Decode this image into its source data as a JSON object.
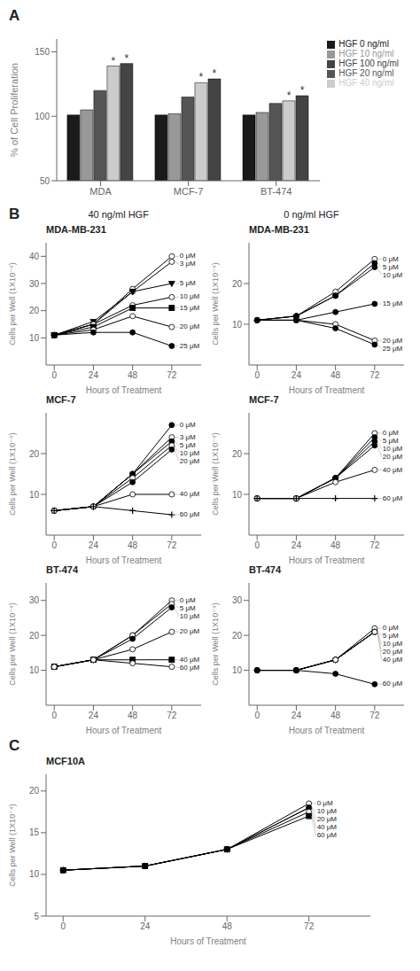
{
  "chart_data": [
    {
      "type": "bar",
      "annotations": [
        "A",
        {
          "text": "*",
          "series": "HGF 40 ng/ml",
          "category": "MDA"
        },
        {
          "text": "*",
          "series": "HGF 40 ng/ml",
          "category": "MCF-7"
        },
        {
          "text": "*",
          "series": "HGF 40 ng/ml",
          "category": "BT-474"
        },
        {
          "text": "*",
          "series": "HGF 100 ng/ml",
          "category": "MDA"
        },
        {
          "text": "*",
          "series": "HGF 100 ng/ml",
          "category": "MCF-7"
        },
        {
          "text": "*",
          "series": "HGF 100 ng/ml",
          "category": "BT-474"
        }
      ],
      "categories": [
        "MDA",
        "MCF-7",
        "BT-474"
      ],
      "series": [
        {
          "name": "HGF 0 ng/ml",
          "color": "#1a1a1a",
          "values": [
            101,
            101,
            101
          ]
        },
        {
          "name": "HGF 10 ng/ml",
          "color": "#999999",
          "values": [
            105,
            102,
            103
          ]
        },
        {
          "name": "HGF 20 ng/ml",
          "color": "#555555",
          "values": [
            120,
            115,
            110
          ]
        },
        {
          "name": "HGF 40 ng/ml",
          "color": "#cccccc",
          "values": [
            139,
            126,
            112
          ]
        },
        {
          "name": "HGF 100 ng/ml",
          "color": "#444444",
          "values": [
            141,
            129,
            116
          ]
        }
      ],
      "ylabel": "% of Cell Proliferation",
      "ylim": [
        50,
        160
      ],
      "yticks": [
        50,
        100,
        150
      ],
      "legend": "upper right"
    },
    {
      "type": "line",
      "title": "MDA-MB-231",
      "annotations": [
        "B",
        "40 ng/ml HGF"
      ],
      "xlabel": "Hours of Treatment",
      "ylabel": "Cells per Well (1X10⁻⁴)",
      "x": [
        0,
        24,
        48,
        72
      ],
      "xlim": [
        -5,
        90
      ],
      "xticks": [
        0,
        24,
        48,
        72
      ],
      "ylim": [
        0,
        45
      ],
      "yticks": [
        10,
        20,
        30,
        40
      ],
      "color": "#000000",
      "series": [
        {
          "name": "0 μM",
          "marker": "circle_open",
          "values": [
            11,
            15,
            28,
            40
          ]
        },
        {
          "name": "3 μM",
          "marker": "circle_open",
          "values": [
            11,
            15,
            27,
            38
          ]
        },
        {
          "name": "5 μM",
          "marker": "triangle_down_filled",
          "values": [
            11,
            16,
            27,
            30
          ]
        },
        {
          "name": "10 μM",
          "marker": "circle_open",
          "values": [
            11,
            15,
            22,
            25
          ]
        },
        {
          "name": "15 μM",
          "marker": "square_filled",
          "values": [
            11,
            14,
            21,
            21
          ]
        },
        {
          "name": "20 μM",
          "marker": "circle_open",
          "values": [
            11,
            13,
            18,
            14
          ]
        },
        {
          "name": "25 μM",
          "marker": "circle_filled",
          "values": [
            11,
            12,
            12,
            7
          ]
        }
      ]
    },
    {
      "type": "line",
      "title": "MDA-MB-231",
      "annotations": [
        "0 ng/ml HGF"
      ],
      "xlabel": "Hours of Treatment",
      "ylabel": "Cells per Well (1X10⁻⁴)",
      "x": [
        0,
        24,
        48,
        72
      ],
      "xlim": [
        -5,
        90
      ],
      "xticks": [
        0,
        24,
        48,
        72
      ],
      "ylim": [
        0,
        30
      ],
      "yticks": [
        10,
        20
      ],
      "color": "#000000",
      "series": [
        {
          "name": "0 μM",
          "marker": "circle_open",
          "values": [
            11,
            12,
            18,
            26
          ]
        },
        {
          "name": "5 μM",
          "marker": "circle_filled",
          "values": [
            11,
            12,
            17,
            25
          ]
        },
        {
          "name": "10 μM",
          "marker": "circle_filled",
          "values": [
            11,
            12,
            17,
            24
          ]
        },
        {
          "name": "15 μM",
          "marker": "circle_filled",
          "values": [
            11,
            11,
            13,
            15
          ]
        },
        {
          "name": "20 μM",
          "marker": "circle_open",
          "values": [
            11,
            11,
            10,
            6
          ]
        },
        {
          "name": "25 μM",
          "marker": "circle_filled",
          "values": [
            11,
            11,
            9,
            5
          ]
        }
      ]
    },
    {
      "type": "line",
      "title": "MCF-7",
      "xlabel": "Hours of Treatment",
      "ylabel": "Cells per Well (1X10⁻⁴)",
      "x": [
        0,
        24,
        48,
        72
      ],
      "xlim": [
        -5,
        90
      ],
      "xticks": [
        0,
        24,
        48,
        72
      ],
      "ylim": [
        0,
        30
      ],
      "yticks": [
        10,
        20
      ],
      "color": "#000000",
      "series": [
        {
          "name": "0 μM",
          "marker": "circle_filled",
          "values": [
            6,
            7,
            15,
            27
          ]
        },
        {
          "name": "3 μM",
          "marker": "circle_open",
          "values": [
            6,
            7,
            15,
            24
          ]
        },
        {
          "name": "5 μM",
          "marker": "circle_filled",
          "values": [
            6,
            7,
            15,
            23
          ]
        },
        {
          "name": "10 μM",
          "marker": "circle_open",
          "values": [
            6,
            7,
            14,
            22
          ]
        },
        {
          "name": "20 μM",
          "marker": "circle_filled",
          "values": [
            6,
            7,
            13,
            21
          ]
        },
        {
          "name": "40 μM",
          "marker": "circle_open",
          "values": [
            6,
            7,
            10,
            10
          ]
        },
        {
          "name": "60 μM",
          "marker": "plus",
          "values": [
            6,
            7,
            6,
            5
          ]
        }
      ]
    },
    {
      "type": "line",
      "title": "MCF-7",
      "xlabel": "Hours of Treatment",
      "ylabel": "Cells per Well (1X10⁻⁴)",
      "x": [
        0,
        24,
        48,
        72
      ],
      "xlim": [
        -5,
        90
      ],
      "xticks": [
        0,
        24,
        48,
        72
      ],
      "ylim": [
        0,
        30
      ],
      "yticks": [
        10,
        20
      ],
      "color": "#000000",
      "series": [
        {
          "name": "0 μM",
          "marker": "circle_open",
          "values": [
            9,
            9,
            14,
            25
          ]
        },
        {
          "name": "5 μM",
          "marker": "circle_filled",
          "values": [
            9,
            9,
            14,
            24
          ]
        },
        {
          "name": "10 μM",
          "marker": "circle_filled",
          "values": [
            9,
            9,
            14,
            23
          ]
        },
        {
          "name": "20 μM",
          "marker": "circle_filled",
          "values": [
            9,
            9,
            14,
            22
          ]
        },
        {
          "name": "40 μM",
          "marker": "circle_open",
          "values": [
            9,
            9,
            13,
            16
          ]
        },
        {
          "name": "60 μM",
          "marker": "plus",
          "values": [
            9,
            9,
            9,
            9
          ]
        }
      ]
    },
    {
      "type": "line",
      "title": "BT-474",
      "xlabel": "Hours of Treatment",
      "ylabel": "Cells per Well (1X10⁻⁴)",
      "x": [
        0,
        24,
        48,
        72
      ],
      "xlim": [
        -5,
        90
      ],
      "xticks": [
        0,
        24,
        48,
        72
      ],
      "ylim": [
        0,
        35
      ],
      "yticks": [
        10,
        20,
        30
      ],
      "color": "#000000",
      "series": [
        {
          "name": "0 μM",
          "marker": "circle_open",
          "values": [
            11,
            13,
            20,
            30
          ]
        },
        {
          "name": "5 μM",
          "marker": "circle_open",
          "values": [
            11,
            13,
            20,
            29
          ]
        },
        {
          "name": "10 μM",
          "marker": "circle_filled",
          "values": [
            11,
            13,
            19,
            28
          ]
        },
        {
          "name": "20 μM",
          "marker": "circle_open",
          "values": [
            11,
            13,
            16,
            21
          ]
        },
        {
          "name": "40 μM",
          "marker": "square_filled",
          "values": [
            11,
            13,
            13,
            13
          ]
        },
        {
          "name": "60 μM",
          "marker": "circle_open",
          "values": [
            11,
            13,
            12,
            11
          ]
        }
      ]
    },
    {
      "type": "line",
      "title": "BT-474",
      "xlabel": "Hours of Treatment",
      "ylabel": "Cells per Well (1X10⁻⁴)",
      "x": [
        0,
        24,
        48,
        72
      ],
      "xlim": [
        -5,
        90
      ],
      "xticks": [
        0,
        24,
        48,
        72
      ],
      "ylim": [
        0,
        35
      ],
      "yticks": [
        10,
        20,
        30
      ],
      "color": "#000000",
      "series": [
        {
          "name": "0 μM",
          "marker": "circle_open",
          "values": [
            10,
            10,
            13,
            22
          ]
        },
        {
          "name": "5 μM",
          "marker": "circle_filled",
          "values": [
            10,
            10,
            13,
            21
          ]
        },
        {
          "name": "10 μM",
          "marker": "circle_filled",
          "values": [
            10,
            10,
            13,
            21
          ]
        },
        {
          "name": "20 μM",
          "marker": "circle_filled",
          "values": [
            10,
            10,
            13,
            21
          ]
        },
        {
          "name": "40 μM",
          "marker": "circle_open",
          "values": [
            10,
            10,
            13,
            21
          ]
        },
        {
          "name": "60 μM",
          "marker": "circle_filled",
          "values": [
            10,
            10,
            9,
            6
          ]
        }
      ]
    },
    {
      "type": "line",
      "title": "MCF10A",
      "annotations": [
        "C"
      ],
      "xlabel": "Hours of Treatment",
      "ylabel": "Cells per Well (1X10⁻⁴)",
      "x": [
        0,
        24,
        48,
        72
      ],
      "xlim": [
        -5,
        90
      ],
      "xticks": [
        0,
        24,
        48,
        72
      ],
      "ylim": [
        5,
        22
      ],
      "yticks": [
        5,
        10,
        15,
        20
      ],
      "color": "#000000",
      "series": [
        {
          "name": "0 μM",
          "marker": "circle_open",
          "values": [
            10.5,
            11,
            13,
            18.5
          ]
        },
        {
          "name": "10 μM",
          "marker": "circle_open",
          "values": [
            10.5,
            11,
            13,
            18
          ]
        },
        {
          "name": "20 μM",
          "marker": "circle_filled",
          "values": [
            10.5,
            11,
            13,
            18
          ]
        },
        {
          "name": "40 μM",
          "marker": "circle_open",
          "values": [
            10.5,
            11,
            13,
            17.5
          ]
        },
        {
          "name": "60 μM",
          "marker": "square_filled",
          "values": [
            10.5,
            11,
            13,
            17
          ]
        }
      ]
    }
  ]
}
